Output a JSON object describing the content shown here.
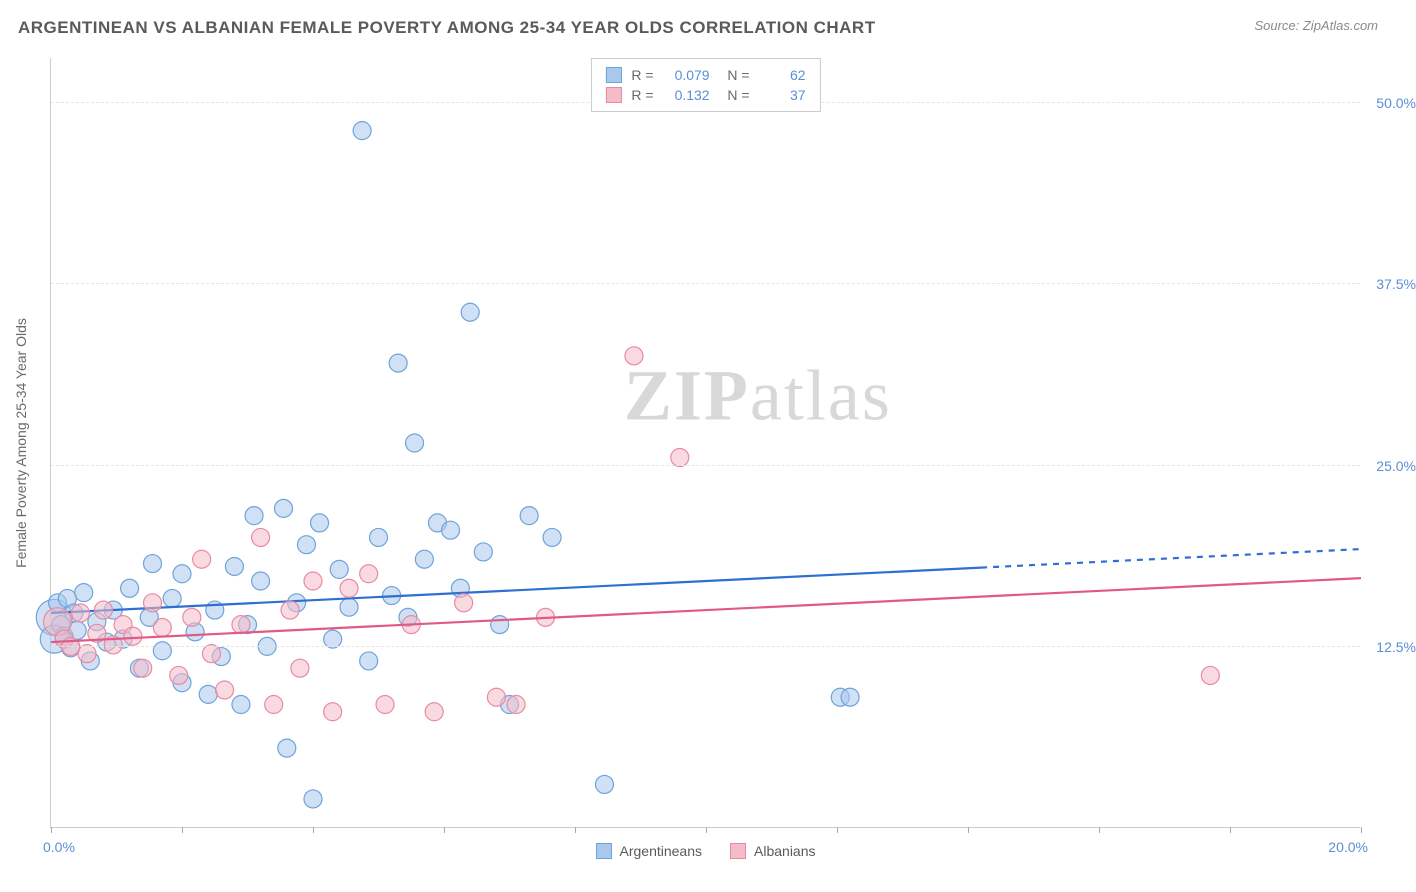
{
  "header": {
    "title": "ARGENTINEAN VS ALBANIAN FEMALE POVERTY AMONG 25-34 YEAR OLDS CORRELATION CHART",
    "source": "Source: ZipAtlas.com"
  },
  "watermark": {
    "zip": "ZIP",
    "atlas": "atlas"
  },
  "chart": {
    "type": "scatter",
    "x_axis": {
      "min": 0,
      "max": 20,
      "origin_label": "0.0%",
      "max_label": "20.0%",
      "tick_positions": [
        0,
        2,
        4,
        6,
        8,
        10,
        12,
        14,
        16,
        18,
        20
      ]
    },
    "y_axis": {
      "min": 0,
      "max": 53,
      "label_text": "Female Poverty Among 25-34 Year Olds",
      "gridlines": [
        12.5,
        25.0,
        37.5,
        50.0
      ],
      "gridline_labels": [
        "12.5%",
        "25.0%",
        "37.5%",
        "50.0%"
      ]
    },
    "background_color": "#ffffff",
    "grid_color": "#e5e5e5",
    "axis_color": "#cccccc",
    "tick_label_color": "#5a8fd6",
    "axis_label_color": "#6a6a6a",
    "marker_radius": 9,
    "marker_stroke_width": 1.2,
    "series": [
      {
        "name": "Argentineans",
        "fill": "#a9c9ec",
        "fill_opacity": 0.55,
        "stroke": "#6fa3da",
        "trend": {
          "color": "#2e6fd1",
          "width": 2.2,
          "y_at_xmin": 14.8,
          "y_at_xmax": 19.2,
          "solid_until_x": 14.2
        },
        "R": "0.079",
        "N": "62",
        "points": [
          {
            "x": 0.05,
            "y": 14.5,
            "r": 18
          },
          {
            "x": 0.05,
            "y": 13.0,
            "r": 14
          },
          {
            "x": 0.1,
            "y": 15.5
          },
          {
            "x": 0.15,
            "y": 14.0
          },
          {
            "x": 0.2,
            "y": 13.2
          },
          {
            "x": 0.25,
            "y": 15.8
          },
          {
            "x": 0.3,
            "y": 12.4
          },
          {
            "x": 0.35,
            "y": 14.8
          },
          {
            "x": 0.4,
            "y": 13.6
          },
          {
            "x": 0.5,
            "y": 16.2
          },
          {
            "x": 0.6,
            "y": 11.5
          },
          {
            "x": 0.7,
            "y": 14.2
          },
          {
            "x": 0.85,
            "y": 12.8
          },
          {
            "x": 0.95,
            "y": 15.0
          },
          {
            "x": 1.1,
            "y": 13.0
          },
          {
            "x": 1.2,
            "y": 16.5
          },
          {
            "x": 1.35,
            "y": 11.0
          },
          {
            "x": 1.5,
            "y": 14.5
          },
          {
            "x": 1.55,
            "y": 18.2
          },
          {
            "x": 1.7,
            "y": 12.2
          },
          {
            "x": 1.85,
            "y": 15.8
          },
          {
            "x": 2.0,
            "y": 10.0
          },
          {
            "x": 2.0,
            "y": 17.5
          },
          {
            "x": 2.2,
            "y": 13.5
          },
          {
            "x": 2.4,
            "y": 9.2
          },
          {
            "x": 2.5,
            "y": 15.0
          },
          {
            "x": 2.6,
            "y": 11.8
          },
          {
            "x": 2.8,
            "y": 18.0
          },
          {
            "x": 2.9,
            "y": 8.5
          },
          {
            "x": 3.0,
            "y": 14.0
          },
          {
            "x": 3.1,
            "y": 21.5
          },
          {
            "x": 3.2,
            "y": 17.0
          },
          {
            "x": 3.3,
            "y": 12.5
          },
          {
            "x": 3.55,
            "y": 22.0
          },
          {
            "x": 3.6,
            "y": 5.5
          },
          {
            "x": 3.75,
            "y": 15.5
          },
          {
            "x": 3.9,
            "y": 19.5
          },
          {
            "x": 4.0,
            "y": 2.0
          },
          {
            "x": 4.1,
            "y": 21.0
          },
          {
            "x": 4.3,
            "y": 13.0
          },
          {
            "x": 4.4,
            "y": 17.8
          },
          {
            "x": 4.55,
            "y": 15.2
          },
          {
            "x": 4.75,
            "y": 48.0
          },
          {
            "x": 4.85,
            "y": 11.5
          },
          {
            "x": 5.0,
            "y": 20.0
          },
          {
            "x": 5.2,
            "y": 16.0
          },
          {
            "x": 5.3,
            "y": 32.0
          },
          {
            "x": 5.45,
            "y": 14.5
          },
          {
            "x": 5.55,
            "y": 26.5
          },
          {
            "x": 5.7,
            "y": 18.5
          },
          {
            "x": 5.9,
            "y": 21.0
          },
          {
            "x": 6.1,
            "y": 20.5
          },
          {
            "x": 6.25,
            "y": 16.5
          },
          {
            "x": 6.4,
            "y": 35.5
          },
          {
            "x": 6.6,
            "y": 19.0
          },
          {
            "x": 6.85,
            "y": 14.0
          },
          {
            "x": 7.0,
            "y": 8.5
          },
          {
            "x": 7.3,
            "y": 21.5
          },
          {
            "x": 7.65,
            "y": 20.0
          },
          {
            "x": 8.45,
            "y": 3.0
          },
          {
            "x": 12.05,
            "y": 9.0
          },
          {
            "x": 12.2,
            "y": 9.0
          }
        ]
      },
      {
        "name": "Albanians",
        "fill": "#f4bcc8",
        "fill_opacity": 0.55,
        "stroke": "#e98aa3",
        "trend": {
          "color": "#e05a85",
          "width": 2.2,
          "y_at_xmin": 12.8,
          "y_at_xmax": 17.2,
          "solid_until_x": 20
        },
        "R": "0.132",
        "N": "37",
        "points": [
          {
            "x": 0.1,
            "y": 14.2,
            "r": 14
          },
          {
            "x": 0.2,
            "y": 13.0
          },
          {
            "x": 0.3,
            "y": 12.5
          },
          {
            "x": 0.45,
            "y": 14.8
          },
          {
            "x": 0.55,
            "y": 12.0
          },
          {
            "x": 0.7,
            "y": 13.4
          },
          {
            "x": 0.8,
            "y": 15.0
          },
          {
            "x": 0.95,
            "y": 12.6
          },
          {
            "x": 1.1,
            "y": 14.0
          },
          {
            "x": 1.25,
            "y": 13.2
          },
          {
            "x": 1.4,
            "y": 11.0
          },
          {
            "x": 1.55,
            "y": 15.5
          },
          {
            "x": 1.7,
            "y": 13.8
          },
          {
            "x": 1.95,
            "y": 10.5
          },
          {
            "x": 2.15,
            "y": 14.5
          },
          {
            "x": 2.3,
            "y": 18.5
          },
          {
            "x": 2.45,
            "y": 12.0
          },
          {
            "x": 2.65,
            "y": 9.5
          },
          {
            "x": 2.9,
            "y": 14.0
          },
          {
            "x": 3.2,
            "y": 20.0
          },
          {
            "x": 3.4,
            "y": 8.5
          },
          {
            "x": 3.65,
            "y": 15.0
          },
          {
            "x": 3.8,
            "y": 11.0
          },
          {
            "x": 4.0,
            "y": 17.0
          },
          {
            "x": 4.3,
            "y": 8.0
          },
          {
            "x": 4.55,
            "y": 16.5
          },
          {
            "x": 4.85,
            "y": 17.5
          },
          {
            "x": 5.1,
            "y": 8.5
          },
          {
            "x": 5.5,
            "y": 14.0
          },
          {
            "x": 5.85,
            "y": 8.0
          },
          {
            "x": 6.3,
            "y": 15.5
          },
          {
            "x": 6.8,
            "y": 9.0
          },
          {
            "x": 7.1,
            "y": 8.5
          },
          {
            "x": 7.55,
            "y": 14.5
          },
          {
            "x": 8.9,
            "y": 32.5
          },
          {
            "x": 9.6,
            "y": 25.5
          },
          {
            "x": 17.7,
            "y": 10.5
          }
        ]
      }
    ],
    "legend_bottom": [
      {
        "label": "Argentineans",
        "fill": "#a9c9ec",
        "stroke": "#6fa3da"
      },
      {
        "label": "Albanians",
        "fill": "#f4bcc8",
        "stroke": "#e98aa3"
      }
    ]
  }
}
